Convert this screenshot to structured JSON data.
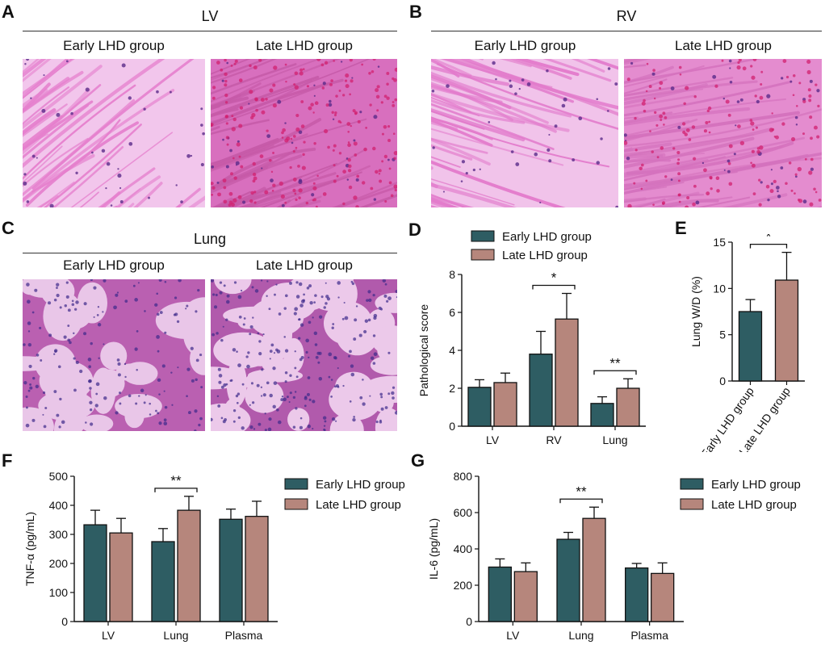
{
  "colors": {
    "early": "#2e5d63",
    "late": "#b6867c",
    "stain_pink": "#e58bd0",
    "stain_deep": "#c3309a",
    "lung_bg": "#e2b8e1",
    "lung_tissue": "#b14aa6"
  },
  "panels": {
    "A": {
      "letter": "A",
      "title": "LV",
      "left_label": "Early LHD group",
      "right_label": "Late LHD group"
    },
    "B": {
      "letter": "B",
      "title": "RV",
      "left_label": "Early LHD group",
      "right_label": "Late LHD group"
    },
    "C": {
      "letter": "C",
      "title": "Lung",
      "left_label": "Early LHD group",
      "right_label": "Late LHD group"
    },
    "D": {
      "letter": "D"
    },
    "E": {
      "letter": "E"
    },
    "F": {
      "letter": "F"
    },
    "G": {
      "letter": "G"
    }
  },
  "legend": {
    "early": "Early LHD group",
    "late": "Late LHD group"
  },
  "chart_data": [
    {
      "id": "D",
      "type": "bar",
      "ylabel": "Pathological score",
      "ylim": [
        0,
        8
      ],
      "yticks": [
        0,
        2,
        4,
        6,
        8
      ],
      "categories": [
        "LV",
        "RV",
        "Lung"
      ],
      "series": [
        {
          "name": "Early LHD group",
          "values": [
            2.05,
            3.8,
            1.2
          ],
          "errors": [
            0.4,
            1.2,
            0.35
          ]
        },
        {
          "name": "Late LHD group",
          "values": [
            2.3,
            5.65,
            2.0
          ],
          "errors": [
            0.5,
            1.35,
            0.5
          ]
        }
      ],
      "significance": [
        {
          "category": "RV",
          "label": "*"
        },
        {
          "category": "Lung",
          "label": "**"
        }
      ],
      "legend": "top"
    },
    {
      "id": "E",
      "type": "bar",
      "ylabel": "Lung W/D (%)",
      "ylim": [
        0,
        15
      ],
      "yticks": [
        0,
        5,
        10,
        15
      ],
      "categories": [
        "Early LHD group",
        "Late LHD group"
      ],
      "values": [
        7.5,
        10.9
      ],
      "errors": [
        1.3,
        3.0
      ],
      "significance": [
        {
          "label": "*"
        }
      ]
    },
    {
      "id": "F",
      "type": "bar",
      "ylabel": "TNF-α (pg/mL)",
      "ylim": [
        0,
        500
      ],
      "yticks": [
        0,
        100,
        200,
        300,
        400,
        500
      ],
      "categories": [
        "LV",
        "Lung",
        "Plasma"
      ],
      "series": [
        {
          "name": "Early LHD group",
          "values": [
            333,
            275,
            352
          ],
          "errors": [
            50,
            45,
            35
          ]
        },
        {
          "name": "Late LHD group",
          "values": [
            305,
            383,
            362
          ],
          "errors": [
            50,
            48,
            52
          ]
        }
      ],
      "significance": [
        {
          "category": "Lung",
          "label": "**"
        }
      ],
      "legend": "right"
    },
    {
      "id": "G",
      "type": "bar",
      "ylabel": "IL-6 (pg/mL)",
      "ylim": [
        0,
        800
      ],
      "yticks": [
        0,
        200,
        400,
        600,
        800
      ],
      "categories": [
        "LV",
        "Lung",
        "Plasma"
      ],
      "series": [
        {
          "name": "Early LHD group",
          "values": [
            300,
            453,
            295
          ],
          "errors": [
            45,
            38,
            25
          ]
        },
        {
          "name": "Late LHD group",
          "values": [
            275,
            568,
            265
          ],
          "errors": [
            48,
            62,
            58
          ]
        }
      ],
      "significance": [
        {
          "category": "Lung",
          "label": "**"
        }
      ],
      "legend": "right"
    }
  ]
}
